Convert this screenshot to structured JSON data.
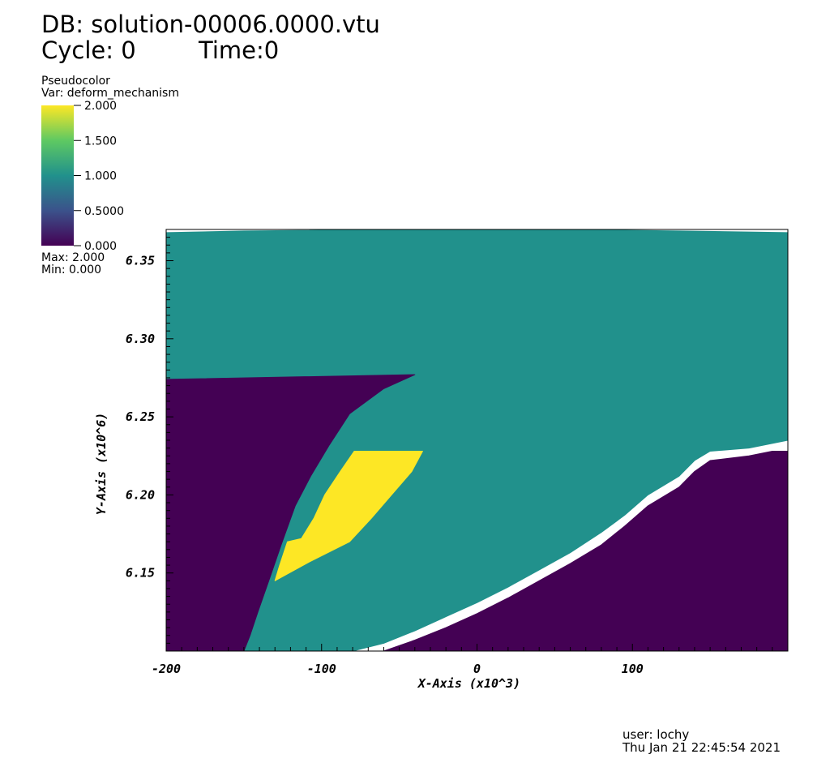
{
  "header": {
    "db_label": "DB: solution-00006.0000.vtu",
    "cycle_label": "Cycle: 0",
    "time_label": "Time:0"
  },
  "legend": {
    "plot_type": "Pseudocolor",
    "var_label": "Var: deform_mechanism",
    "ticks": [
      "2.000",
      "1.500",
      "1.000",
      "0.5000",
      "0.000"
    ],
    "max_label": "Max:  2.000",
    "min_label": "Min:  0.000",
    "colormap": [
      "#440154",
      "#3b528b",
      "#21918c",
      "#5ec962",
      "#fde725"
    ]
  },
  "footer": {
    "user": "user: lochy",
    "timestamp": "Thu Jan 21 22:45:54 2021"
  },
  "chart_data": {
    "type": "heatmap",
    "title": "deform_mechanism",
    "xlabel": "X-Axis (x10^3)",
    "ylabel": "Y-Axis (x10^6)",
    "xlim": [
      -200,
      200
    ],
    "ylim": [
      6.1,
      6.37
    ],
    "x_ticks": [
      -200,
      -100,
      0,
      100
    ],
    "x_tick_labels": [
      "-200",
      "-100",
      "0",
      "100"
    ],
    "y_ticks": [
      6.15,
      6.2,
      6.25,
      6.3,
      6.35
    ],
    "y_tick_labels": [
      "6.15",
      "6.20",
      "6.25",
      "6.30",
      "6.35"
    ],
    "value_range": [
      0,
      2
    ],
    "colors": {
      "value_0": "#440154",
      "value_1": "#21918c",
      "value_2": "#fde725",
      "transition": "#3b528b"
    },
    "regions": [
      {
        "name": "mechanism-1",
        "value": 1,
        "polygon": [
          [
            -200,
            6.368
          ],
          [
            -150,
            6.369
          ],
          [
            -50,
            6.37
          ],
          [
            0,
            6.37
          ],
          [
            60,
            6.37
          ],
          [
            130,
            6.369
          ],
          [
            200,
            6.368
          ],
          [
            200,
            6.235
          ],
          [
            175,
            6.23
          ],
          [
            150,
            6.228
          ],
          [
            140,
            6.222
          ],
          [
            130,
            6.212
          ],
          [
            110,
            6.2
          ],
          [
            95,
            6.187
          ],
          [
            80,
            6.176
          ],
          [
            60,
            6.163
          ],
          [
            40,
            6.152
          ],
          [
            20,
            6.141
          ],
          [
            0,
            6.131
          ],
          [
            -20,
            6.122
          ],
          [
            -40,
            6.113
          ],
          [
            -60,
            6.105
          ],
          [
            -80,
            6.1
          ],
          [
            -100,
            6.1
          ],
          [
            -150,
            6.1
          ],
          [
            -146,
            6.11
          ],
          [
            -141,
            6.125
          ],
          [
            -134,
            6.145
          ],
          [
            -126,
            6.168
          ],
          [
            -117,
            6.193
          ],
          [
            -107,
            6.212
          ],
          [
            -95,
            6.232
          ],
          [
            -82,
            6.252
          ],
          [
            -60,
            6.268
          ],
          [
            -40,
            6.277
          ],
          [
            -200,
            6.274
          ]
        ]
      },
      {
        "name": "mechanism-0-upper-left",
        "value": 0,
        "polygon": [
          [
            -200,
            6.274
          ],
          [
            -40,
            6.277
          ],
          [
            -60,
            6.268
          ],
          [
            -82,
            6.252
          ],
          [
            -95,
            6.232
          ],
          [
            -107,
            6.212
          ],
          [
            -117,
            6.193
          ],
          [
            -126,
            6.168
          ],
          [
            -134,
            6.145
          ],
          [
            -141,
            6.125
          ],
          [
            -146,
            6.11
          ],
          [
            -150,
            6.1
          ],
          [
            -200,
            6.1
          ]
        ]
      },
      {
        "name": "mechanism-0-lower-right",
        "value": 0,
        "polygon": [
          [
            200,
            6.228
          ],
          [
            190,
            6.228
          ],
          [
            175,
            6.225
          ],
          [
            150,
            6.222
          ],
          [
            140,
            6.215
          ],
          [
            130,
            6.205
          ],
          [
            110,
            6.193
          ],
          [
            95,
            6.18
          ],
          [
            80,
            6.168
          ],
          [
            60,
            6.156
          ],
          [
            40,
            6.145
          ],
          [
            20,
            6.134
          ],
          [
            0,
            6.124
          ],
          [
            -20,
            6.115
          ],
          [
            -40,
            6.107
          ],
          [
            -60,
            6.1
          ],
          [
            200,
            6.1
          ]
        ]
      },
      {
        "name": "mechanism-2",
        "value": 2,
        "polygon": [
          [
            -79,
            6.228
          ],
          [
            -35,
            6.228
          ],
          [
            -42,
            6.215
          ],
          [
            -55,
            6.2
          ],
          [
            -68,
            6.185
          ],
          [
            -82,
            6.17
          ],
          [
            -108,
            6.157
          ],
          [
            -130,
            6.145
          ],
          [
            -127,
            6.155
          ],
          [
            -122,
            6.17
          ],
          [
            -113,
            6.172
          ],
          [
            -105,
            6.185
          ],
          [
            -98,
            6.2
          ],
          [
            -88,
            6.215
          ]
        ]
      }
    ]
  }
}
